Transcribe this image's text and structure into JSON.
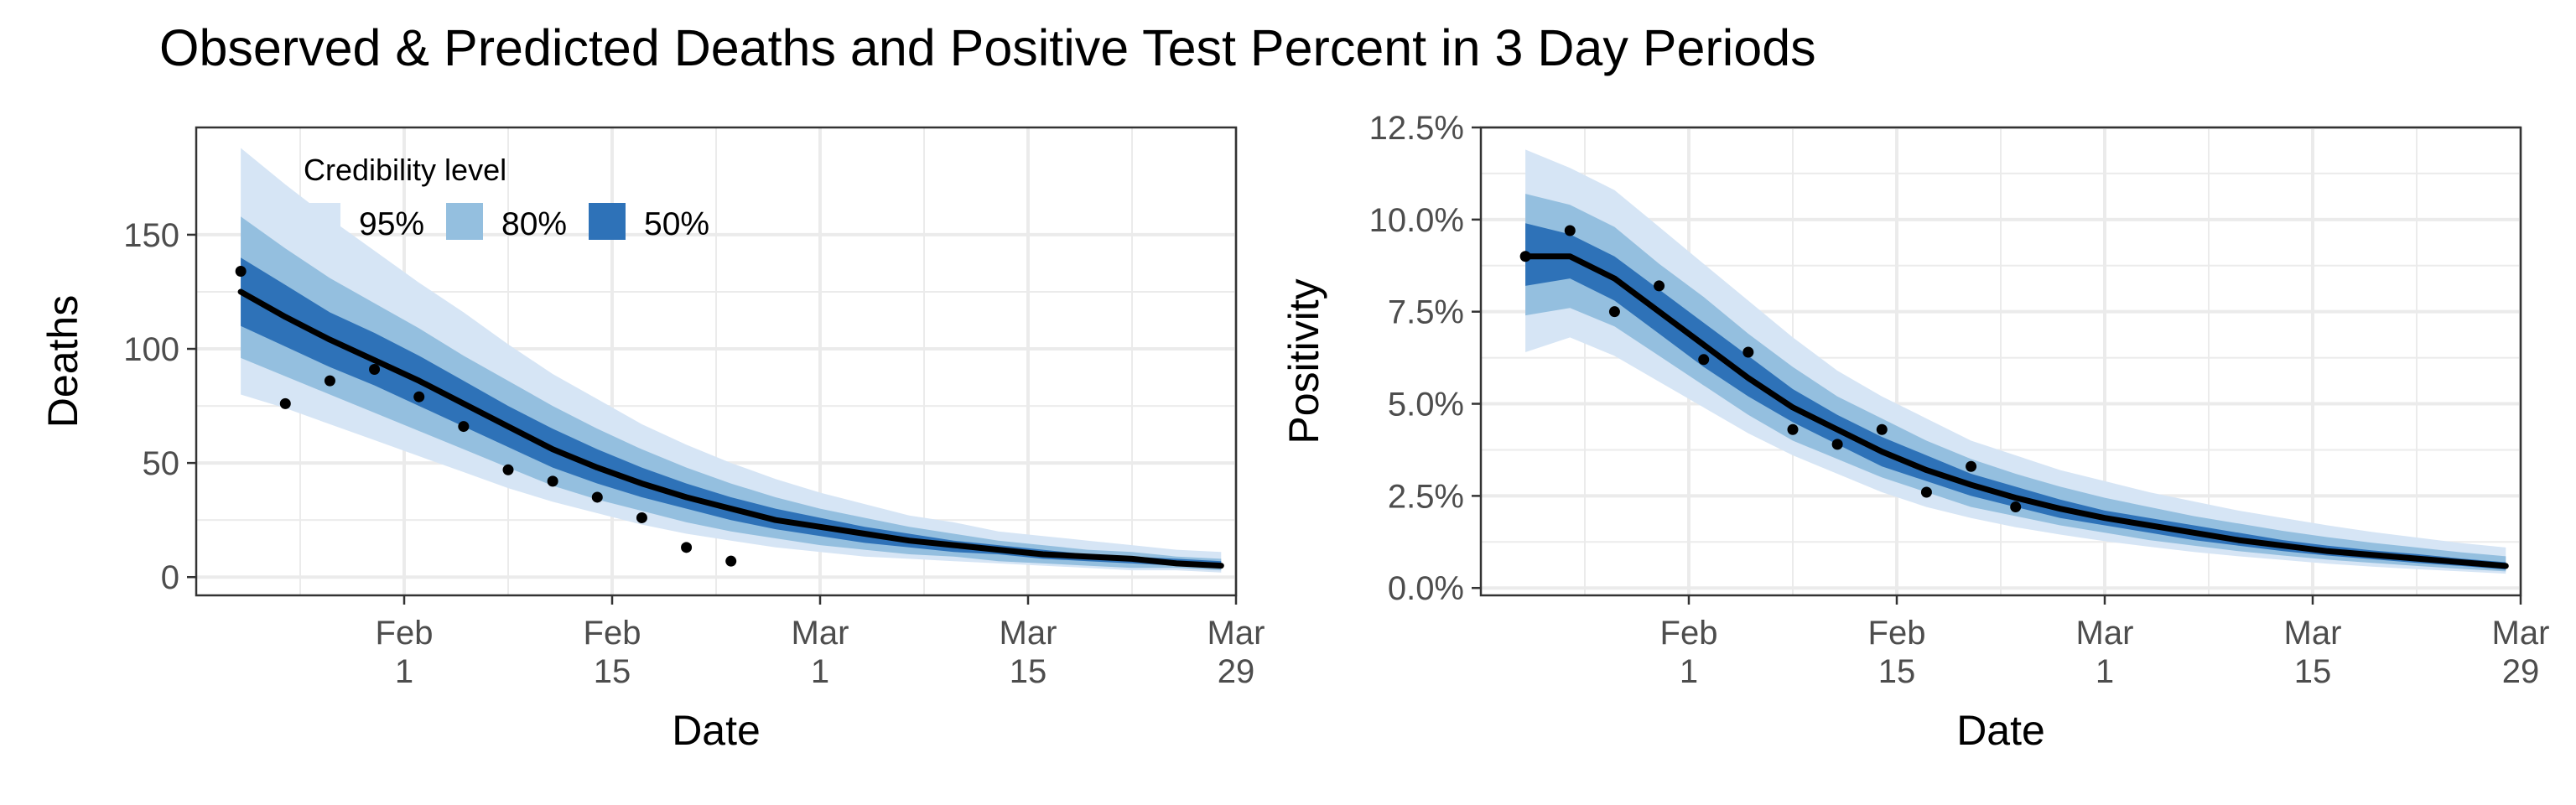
{
  "title": "Observed & Predicted Deaths and Positive Test Percent in 3 Day Periods",
  "legend": {
    "title": "Credibility level",
    "items": [
      {
        "label": "95%",
        "color": "#d6e5f5"
      },
      {
        "label": "80%",
        "color": "#94bfdf"
      },
      {
        "label": "50%",
        "color": "#2e72b8"
      }
    ]
  },
  "colors": {
    "median_line": "#000000",
    "points": "#000000",
    "grid": "#ebebeb"
  },
  "chart_data": [
    {
      "type": "area",
      "xlabel": "Date",
      "ylabel": "Deaths",
      "x_ticks": [
        {
          "x": "2021-02-01",
          "line1": "Feb",
          "line2": "1"
        },
        {
          "x": "2021-02-15",
          "line1": "Feb",
          "line2": "15"
        },
        {
          "x": "2021-03-01",
          "line1": "Mar",
          "line2": "1"
        },
        {
          "x": "2021-03-15",
          "line1": "Mar",
          "line2": "15"
        },
        {
          "x": "2021-03-29",
          "line1": "Mar",
          "line2": "29"
        }
      ],
      "xlim": [
        "2021-01-18",
        "2021-03-29"
      ],
      "y_ticks": [
        0,
        50,
        100,
        150
      ],
      "y_tick_labels": [
        "0",
        "50",
        "100",
        "150"
      ],
      "ylim": [
        -8,
        197
      ],
      "grid": true,
      "legend_position": "top-left",
      "band_x": [
        "2021-01-21",
        "2021-01-24",
        "2021-01-27",
        "2021-01-30",
        "2021-02-02",
        "2021-02-05",
        "2021-02-08",
        "2021-02-11",
        "2021-02-14",
        "2021-02-17",
        "2021-02-20",
        "2021-02-23",
        "2021-02-26",
        "2021-03-01",
        "2021-03-04",
        "2021-03-07",
        "2021-03-10",
        "2021-03-13",
        "2021-03-16",
        "2021-03-19",
        "2021-03-22",
        "2021-03-25",
        "2021-03-28"
      ],
      "median": [
        125,
        114,
        104,
        95,
        86,
        76,
        66,
        56,
        48,
        41,
        35,
        30,
        25,
        22,
        19,
        16,
        14,
        12,
        10,
        9,
        8,
        6,
        5
      ],
      "band50_lower": [
        110,
        101,
        92,
        84,
        75,
        66,
        57,
        48,
        41,
        35,
        30,
        25,
        21,
        18,
        15,
        13,
        11,
        10,
        8,
        7,
        6,
        5,
        4
      ],
      "band50_upper": [
        140,
        128,
        116,
        107,
        97,
        86,
        75,
        65,
        56,
        48,
        41,
        35,
        30,
        26,
        22,
        19,
        16,
        14,
        12,
        10,
        9,
        8,
        7
      ],
      "band80_lower": [
        96,
        88,
        80,
        72,
        64,
        56,
        48,
        40,
        34,
        29,
        24,
        20,
        17,
        14,
        12,
        10,
        9,
        7,
        6,
        5,
        4,
        4,
        3
      ],
      "band80_upper": [
        158,
        144,
        131,
        120,
        109,
        97,
        86,
        75,
        65,
        56,
        48,
        41,
        35,
        30,
        26,
        22,
        19,
        16,
        14,
        12,
        11,
        9,
        8
      ],
      "band95_lower": [
        80,
        74,
        67,
        60,
        53,
        46,
        39,
        33,
        28,
        23,
        19,
        16,
        13,
        11,
        9,
        8,
        7,
        6,
        5,
        4,
        3,
        3,
        2
      ],
      "band95_upper": [
        188,
        172,
        157,
        143,
        129,
        116,
        102,
        89,
        78,
        67,
        58,
        50,
        43,
        37,
        32,
        27,
        24,
        20,
        18,
        16,
        14,
        12,
        11
      ],
      "observed_x": [
        "2021-01-21",
        "2021-01-24",
        "2021-01-27",
        "2021-01-30",
        "2021-02-02",
        "2021-02-05",
        "2021-02-08",
        "2021-02-11",
        "2021-02-14",
        "2021-02-17",
        "2021-02-20",
        "2021-02-23"
      ],
      "observed": [
        134,
        76,
        86,
        91,
        79,
        66,
        47,
        42,
        35,
        26,
        13,
        7
      ]
    },
    {
      "type": "area",
      "xlabel": "Date",
      "ylabel": "Positivity",
      "x_ticks": [
        {
          "x": "2021-02-01",
          "line1": "Feb",
          "line2": "1"
        },
        {
          "x": "2021-02-15",
          "line1": "Feb",
          "line2": "15"
        },
        {
          "x": "2021-03-01",
          "line1": "Mar",
          "line2": "1"
        },
        {
          "x": "2021-03-15",
          "line1": "Mar",
          "line2": "15"
        },
        {
          "x": "2021-03-29",
          "line1": "Mar",
          "line2": "29"
        }
      ],
      "xlim": [
        "2021-01-18",
        "2021-03-29"
      ],
      "y_ticks": [
        0,
        2.5,
        5,
        7.5,
        10,
        12.5
      ],
      "y_tick_labels": [
        "0.0%",
        "2.5%",
        "5.0%",
        "7.5%",
        "10.0%",
        "12.5%"
      ],
      "ylim": [
        -0.2,
        12.5
      ],
      "grid": true,
      "band_x": [
        "2021-01-21",
        "2021-01-24",
        "2021-01-27",
        "2021-01-30",
        "2021-02-02",
        "2021-02-05",
        "2021-02-08",
        "2021-02-11",
        "2021-02-14",
        "2021-02-17",
        "2021-02-20",
        "2021-02-23",
        "2021-02-26",
        "2021-03-01",
        "2021-03-04",
        "2021-03-07",
        "2021-03-10",
        "2021-03-13",
        "2021-03-16",
        "2021-03-19",
        "2021-03-22",
        "2021-03-25",
        "2021-03-28"
      ],
      "median": [
        9.0,
        9.0,
        8.4,
        7.5,
        6.6,
        5.7,
        4.9,
        4.3,
        3.7,
        3.2,
        2.8,
        2.45,
        2.15,
        1.9,
        1.7,
        1.5,
        1.3,
        1.15,
        1.0,
        0.9,
        0.8,
        0.7,
        0.6
      ],
      "band50_lower": [
        8.2,
        8.4,
        7.8,
        6.9,
        6.0,
        5.2,
        4.5,
        3.9,
        3.3,
        2.9,
        2.5,
        2.2,
        1.9,
        1.7,
        1.5,
        1.3,
        1.15,
        1.0,
        0.88,
        0.78,
        0.68,
        0.6,
        0.5
      ],
      "band50_upper": [
        9.9,
        9.6,
        9.0,
        8.1,
        7.2,
        6.3,
        5.4,
        4.7,
        4.1,
        3.6,
        3.1,
        2.75,
        2.4,
        2.1,
        1.9,
        1.7,
        1.5,
        1.3,
        1.15,
        1.02,
        0.92,
        0.8,
        0.7
      ],
      "band80_lower": [
        7.4,
        7.6,
        7.1,
        6.3,
        5.5,
        4.7,
        4.0,
        3.5,
        3.0,
        2.6,
        2.2,
        1.95,
        1.7,
        1.5,
        1.3,
        1.15,
        1.0,
        0.88,
        0.77,
        0.68,
        0.6,
        0.52,
        0.45
      ],
      "band80_upper": [
        10.7,
        10.4,
        9.8,
        8.8,
        7.9,
        6.9,
        6.0,
        5.2,
        4.6,
        4.0,
        3.5,
        3.1,
        2.75,
        2.45,
        2.2,
        1.95,
        1.75,
        1.55,
        1.38,
        1.23,
        1.1,
        0.97,
        0.86
      ],
      "band95_lower": [
        6.4,
        6.8,
        6.3,
        5.6,
        4.9,
        4.2,
        3.6,
        3.1,
        2.6,
        2.2,
        1.9,
        1.65,
        1.45,
        1.27,
        1.12,
        0.98,
        0.86,
        0.76,
        0.66,
        0.58,
        0.51,
        0.45,
        0.39
      ],
      "band95_upper": [
        11.9,
        11.4,
        10.8,
        9.8,
        8.8,
        7.8,
        6.8,
        5.9,
        5.2,
        4.6,
        4.0,
        3.6,
        3.2,
        2.9,
        2.6,
        2.35,
        2.1,
        1.9,
        1.7,
        1.52,
        1.37,
        1.22,
        1.1
      ],
      "observed_x": [
        "2021-01-21",
        "2021-01-24",
        "2021-01-27",
        "2021-01-30",
        "2021-02-02",
        "2021-02-05",
        "2021-02-08",
        "2021-02-11",
        "2021-02-14",
        "2021-02-17",
        "2021-02-20",
        "2021-02-23"
      ],
      "observed": [
        9.0,
        9.7,
        7.5,
        8.2,
        6.2,
        6.4,
        4.3,
        3.9,
        4.3,
        2.6,
        3.3,
        2.2
      ]
    }
  ]
}
